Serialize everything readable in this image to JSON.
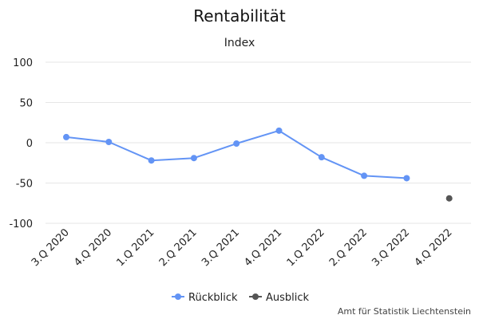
{
  "chart_data": {
    "type": "line",
    "title": "Rentabilität",
    "subtitle": "Index",
    "categories": [
      "3.Q 2020",
      "4.Q 2020",
      "1.Q 2021",
      "2.Q 2021",
      "3.Q 2021",
      "4.Q 2021",
      "1.Q 2022",
      "2.Q 2022",
      "3.Q 2022",
      "4.Q 2022"
    ],
    "ylim": [
      -100,
      100
    ],
    "yticks": [
      100,
      50,
      0,
      -50,
      -100
    ],
    "grid": true,
    "legend_position": "bottom-center",
    "series": [
      {
        "name": "Rückblick",
        "color": "#6394f5",
        "values": [
          7,
          1,
          -22,
          -19,
          -1,
          15,
          -18,
          -41,
          -44,
          null
        ]
      },
      {
        "name": "Ausblick",
        "color": "#555555",
        "values": [
          null,
          null,
          null,
          null,
          null,
          null,
          null,
          null,
          null,
          -69
        ]
      }
    ]
  },
  "credits": "Amt für Statistik Liechtenstein"
}
